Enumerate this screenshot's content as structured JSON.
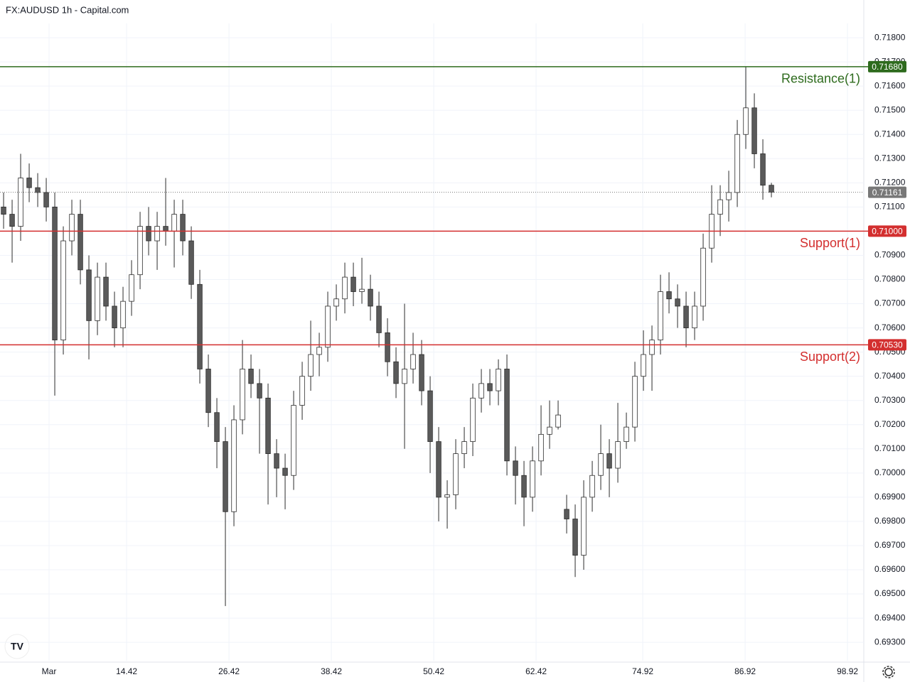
{
  "chart_data": {
    "type": "candlestick",
    "title": "FX:AUDUSD 1h - Capital.com",
    "up_color": "#ffffff",
    "down_color": "#5a5a5a",
    "outline_color": "#2b2b2b",
    "grid": true,
    "xlim": [
      -0.42,
      100.83
    ],
    "xticks": [
      {
        "value": 5.33,
        "label": "Mar"
      },
      14.42,
      26.42,
      38.42,
      50.42,
      62.42,
      74.92,
      86.92,
      98.92
    ],
    "ylim": [
      0.69224,
      0.71859
    ],
    "yticks": [
      {
        "value": 0.718,
        "label": "0.71800"
      },
      {
        "value": 0.717,
        "label": "0.71700"
      },
      {
        "value": 0.716,
        "label": "0.71600"
      },
      {
        "value": 0.715,
        "label": "0.71500"
      },
      {
        "value": 0.714,
        "label": "0.71400"
      },
      {
        "value": 0.713,
        "label": "0.71300"
      },
      {
        "value": 0.712,
        "label": "0.71200"
      },
      {
        "value": 0.711,
        "label": "0.71100"
      },
      {
        "value": 0.71,
        "label": "0.71000"
      },
      {
        "value": 0.709,
        "label": "0.70900"
      },
      {
        "value": 0.708,
        "label": "0.70800"
      },
      {
        "value": 0.707,
        "label": "0.70700"
      },
      {
        "value": 0.706,
        "label": "0.70600"
      },
      {
        "value": 0.705,
        "label": "0.70500"
      },
      {
        "value": 0.704,
        "label": "0.70400"
      },
      {
        "value": 0.703,
        "label": "0.70300"
      },
      {
        "value": 0.702,
        "label": "0.70200"
      },
      {
        "value": 0.701,
        "label": "0.70100"
      },
      {
        "value": 0.7,
        "label": "0.70000"
      },
      {
        "value": 0.699,
        "label": "0.69900"
      },
      {
        "value": 0.698,
        "label": "0.69800"
      },
      {
        "value": 0.697,
        "label": "0.69700"
      },
      {
        "value": 0.696,
        "label": "0.69600"
      },
      {
        "value": 0.695,
        "label": "0.69500"
      },
      {
        "value": 0.694,
        "label": "0.69400"
      },
      {
        "value": 0.693,
        "label": "0.69300"
      }
    ],
    "open": [
      0.711,
      0.7107,
      0.7102,
      0.7122,
      0.7118,
      0.7116,
      0.711,
      0.7055,
      0.7096,
      0.7107,
      0.7084,
      0.7063,
      0.7081,
      0.7069,
      0.706,
      0.7071,
      0.7082,
      0.7102,
      0.7096,
      0.7102,
      0.71,
      0.7107,
      0.7096,
      0.7078,
      0.7043,
      0.7025,
      0.7013,
      0.6984,
      0.7022,
      0.7043,
      0.7037,
      0.7031,
      0.7008,
      0.7002,
      0.6999,
      0.7028,
      0.704,
      0.7049,
      0.7052,
      0.7069,
      0.7072,
      0.7081,
      0.7075,
      0.7076,
      0.7069,
      0.7058,
      0.7046,
      0.7037,
      0.7043,
      0.7049,
      0.7034,
      0.7013,
      0.699,
      0.6991,
      0.7008,
      0.7013,
      0.7031,
      0.7037,
      0.7034,
      0.7043,
      0.7005,
      0.6999,
      0.699,
      0.7005,
      0.7016,
      0.7019,
      0.6985,
      0.6981,
      0.6966,
      0.699,
      0.6999,
      0.7008,
      0.7002,
      0.7013,
      0.7019,
      0.704,
      0.7049,
      0.7055,
      0.7075,
      0.7072,
      0.7069,
      0.706,
      0.7069,
      0.7093,
      0.7107,
      0.7113,
      0.7116,
      0.714,
      0.7151,
      0.7132,
      0.7119
    ],
    "high": [
      0.7116,
      0.7113,
      0.7132,
      0.7128,
      0.7124,
      0.7122,
      0.7116,
      0.7102,
      0.7113,
      0.7113,
      0.709,
      0.7087,
      0.7087,
      0.7075,
      0.7077,
      0.7088,
      0.7108,
      0.711,
      0.7108,
      0.7122,
      0.7113,
      0.7113,
      0.7102,
      0.7084,
      0.7049,
      0.7031,
      0.7019,
      0.7028,
      0.7055,
      0.7049,
      0.7043,
      0.7037,
      0.7014,
      0.7008,
      0.7034,
      0.7046,
      0.7063,
      0.7058,
      0.7075,
      0.7078,
      0.7087,
      0.7087,
      0.7089,
      0.7082,
      0.7075,
      0.7064,
      0.7052,
      0.707,
      0.7058,
      0.7055,
      0.704,
      0.7019,
      0.6997,
      0.7014,
      0.7019,
      0.7037,
      0.7043,
      0.7043,
      0.7047,
      0.7049,
      0.7011,
      0.7005,
      0.7011,
      0.7028,
      0.703,
      0.703,
      0.6991,
      0.6987,
      0.6997,
      0.7005,
      0.702,
      0.7014,
      0.7029,
      0.7025,
      0.7046,
      0.7059,
      0.7061,
      0.7082,
      0.7083,
      0.7078,
      0.7075,
      0.7075,
      0.7099,
      0.7119,
      0.7119,
      0.7125,
      0.7146,
      0.7168,
      0.7157,
      0.7138,
      0.712
    ],
    "low": [
      0.7101,
      0.7087,
      0.7096,
      0.7112,
      0.711,
      0.7104,
      0.7032,
      0.7049,
      0.709,
      0.7078,
      0.7047,
      0.7057,
      0.7063,
      0.7052,
      0.7052,
      0.7065,
      0.7076,
      0.709,
      0.7084,
      0.7094,
      0.7085,
      0.709,
      0.7072,
      0.7037,
      0.7019,
      0.7002,
      0.6945,
      0.6978,
      0.7016,
      0.7031,
      0.7008,
      0.6987,
      0.699,
      0.6985,
      0.6993,
      0.7022,
      0.7034,
      0.704,
      0.7046,
      0.7063,
      0.7066,
      0.7069,
      0.707,
      0.7063,
      0.7052,
      0.704,
      0.7031,
      0.701,
      0.7037,
      0.7028,
      0.7,
      0.698,
      0.6977,
      0.6985,
      0.7002,
      0.7007,
      0.7025,
      0.7028,
      0.7028,
      0.6999,
      0.6987,
      0.6978,
      0.6984,
      0.6999,
      0.701,
      0.7018,
      0.6975,
      0.6957,
      0.696,
      0.6984,
      0.6993,
      0.699,
      0.6996,
      0.701,
      0.7013,
      0.7034,
      0.7034,
      0.7049,
      0.7066,
      0.706,
      0.7052,
      0.7055,
      0.7063,
      0.7087,
      0.7098,
      0.7104,
      0.711,
      0.7134,
      0.7126,
      0.7113,
      0.7114
    ],
    "close": [
      0.7107,
      0.7102,
      0.7122,
      0.7118,
      0.7116,
      0.711,
      0.7055,
      0.7096,
      0.7107,
      0.7084,
      0.7063,
      0.7081,
      0.7069,
      0.706,
      0.7071,
      0.7082,
      0.7102,
      0.7096,
      0.7102,
      0.71,
      0.7107,
      0.7096,
      0.7078,
      0.7043,
      0.7025,
      0.7013,
      0.6984,
      0.7022,
      0.7043,
      0.7037,
      0.7031,
      0.7008,
      0.7002,
      0.6999,
      0.7028,
      0.704,
      0.7049,
      0.7052,
      0.7069,
      0.7072,
      0.7081,
      0.7075,
      0.7076,
      0.7069,
      0.7058,
      0.7046,
      0.7037,
      0.7043,
      0.7049,
      0.7034,
      0.7013,
      0.699,
      0.6991,
      0.7008,
      0.7013,
      0.7031,
      0.7037,
      0.7034,
      0.7043,
      0.7005,
      0.6999,
      0.699,
      0.7005,
      0.7016,
      0.7019,
      0.7024,
      0.6981,
      0.6966,
      0.699,
      0.6999,
      0.7008,
      0.7002,
      0.7013,
      0.7019,
      0.704,
      0.7049,
      0.7055,
      0.7075,
      0.7072,
      0.7069,
      0.706,
      0.7069,
      0.7093,
      0.7107,
      0.7113,
      0.7116,
      0.714,
      0.7151,
      0.7132,
      0.7119,
      0.71161
    ],
    "last_price": {
      "value": 0.71161,
      "label": "0.71161",
      "color": "#787878"
    },
    "levels": [
      {
        "name": "Resistance(1)",
        "value": 0.7168,
        "label": "0.71680",
        "color": "#2e6b1e"
      },
      {
        "name": "Support(1)",
        "value": 0.71,
        "label": "0.71000",
        "color": "#d32f2f"
      },
      {
        "name": "Support(2)",
        "value": 0.7053,
        "label": "0.70530",
        "color": "#d32f2f"
      }
    ]
  }
}
